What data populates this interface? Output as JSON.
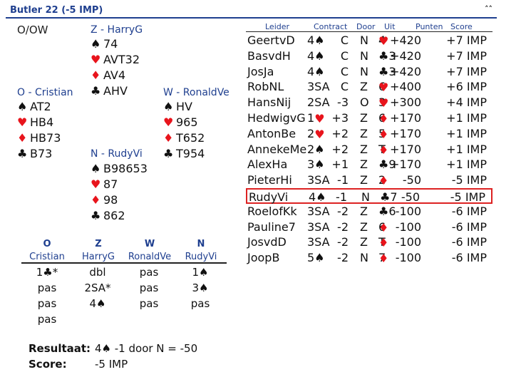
{
  "header": {
    "title": "Butler 22  (-5 IMP)",
    "collapse_icon": "chevron-up-icon"
  },
  "board": {
    "vulnerability": "O/OW"
  },
  "hands": {
    "north": {
      "label": "Z - HarryG",
      "spades": "74",
      "hearts": "AVT32",
      "diamonds": "AV4",
      "clubs": "AHV"
    },
    "west": {
      "label": "O - Cristian",
      "spades": "AT2",
      "hearts": "HB4",
      "diamonds": "HB73",
      "clubs": "B73"
    },
    "east": {
      "label": "W - RonaldVe",
      "spades": "HV",
      "hearts": "965",
      "diamonds": "T652",
      "clubs": "T954"
    },
    "south": {
      "label": "N - RudyVi",
      "spades": "B98653",
      "hearts": "87",
      "diamonds": "98",
      "clubs": "862"
    }
  },
  "bidding": {
    "columns": [
      {
        "dir": "O",
        "name": "Cristian"
      },
      {
        "dir": "Z",
        "name": "HarryG"
      },
      {
        "dir": "W",
        "name": "RonaldVe"
      },
      {
        "dir": "N",
        "name": "RudyVi"
      }
    ],
    "rows": [
      [
        "1♣*",
        "dbl",
        "pas",
        "1♠"
      ],
      [
        "pas",
        "2SA*",
        "pas",
        "3♠"
      ],
      [
        "pas",
        "4♠",
        "pas",
        "pas"
      ],
      [
        "pas",
        "",
        "",
        ""
      ]
    ]
  },
  "result": {
    "label": "Resultaat:",
    "contract_suit": "4♠",
    "contract_text": " -1 door N = -50",
    "score_label": "Score:",
    "score_value": "-5 IMP"
  },
  "table": {
    "headers": {
      "leider": "Leider",
      "contract": "Contract",
      "door": "Door",
      "uit": "Uit",
      "punten": "Punten",
      "score": "Score"
    },
    "rows": [
      {
        "leider": "GeertvD",
        "contract": "4♠",
        "res": "C",
        "door": "N",
        "uit": "♥4",
        "punten": "+420",
        "score": "+7 IMP"
      },
      {
        "leider": "BasvdH",
        "contract": "4♠",
        "res": "C",
        "door": "N",
        "uit": "♣3",
        "punten": "+420",
        "score": "+7 IMP"
      },
      {
        "leider": "JosJa",
        "contract": "4♠",
        "res": "C",
        "door": "N",
        "uit": "♣3",
        "punten": "+420",
        "score": "+7 IMP"
      },
      {
        "leider": "RobNL",
        "contract": "3SA",
        "res": "C",
        "door": "Z",
        "uit": "♥6",
        "punten": "+400",
        "score": "+6 IMP"
      },
      {
        "leider": "HansNij",
        "contract": "2SA",
        "res": "-3",
        "door": "O",
        "uit": "♥3",
        "punten": "+300",
        "score": "+4 IMP"
      },
      {
        "leider": "HedwigvG",
        "contract": "1♥",
        "res": "+3",
        "door": "Z",
        "uit": "♦6",
        "punten": "+170",
        "score": "+1 IMP"
      },
      {
        "leider": "AntonBe",
        "contract": "2♥",
        "res": "+2",
        "door": "Z",
        "uit": "♦5",
        "punten": "+170",
        "score": "+1 IMP"
      },
      {
        "leider": "AnnekeMe",
        "contract": "2♠",
        "res": "+2",
        "door": "Z",
        "uit": "♦T",
        "punten": "+170",
        "score": "+1 IMP"
      },
      {
        "leider": "AlexHa",
        "contract": "3♠",
        "res": "+1",
        "door": "Z",
        "uit": "♣9",
        "punten": "+170",
        "score": "+1 IMP"
      },
      {
        "leider": "PieterHi",
        "contract": "3SA",
        "res": "-1",
        "door": "Z",
        "uit": "♦2",
        "punten": "-50",
        "score": "-5 IMP"
      },
      {
        "leider": "RudyVi",
        "contract": "4♠",
        "res": "-1",
        "door": "N",
        "uit": "♣7",
        "punten": "-50",
        "score": "-5 IMP"
      },
      {
        "leider": "RoelofKk",
        "contract": "3SA",
        "res": "-2",
        "door": "Z",
        "uit": "♣6",
        "punten": "-100",
        "score": "-6 IMP"
      },
      {
        "leider": "Pauline7",
        "contract": "3SA",
        "res": "-2",
        "door": "Z",
        "uit": "♦6",
        "punten": "-100",
        "score": "-6 IMP"
      },
      {
        "leider": "JosvdD",
        "contract": "3SA",
        "res": "-2",
        "door": "Z",
        "uit": "♦T",
        "punten": "-100",
        "score": "-6 IMP"
      },
      {
        "leider": "JoopB",
        "contract": "5♠",
        "res": "-2",
        "door": "N",
        "uit": "♦7",
        "punten": "-100",
        "score": "-6 IMP"
      }
    ]
  }
}
